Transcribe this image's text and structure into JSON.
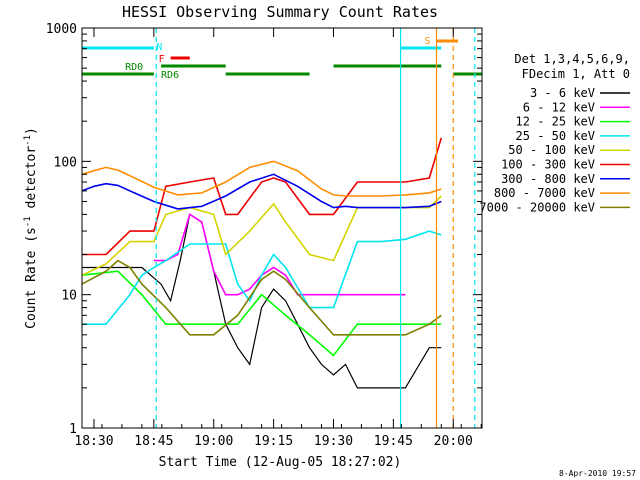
{
  "chart_data": {
    "type": "line",
    "title": "HESSI Observing Summary Count Rates",
    "xlabel": "Start Time (12-Aug-05 18:27:02)",
    "ylabel_prefix": "Count Rate (s",
    "ylabel_mid": " detector",
    "ylabel_suffix": ")",
    "ylabel_exp": "-1",
    "yscale": "log",
    "ylim": [
      1,
      1000
    ],
    "xlim_minutes": [
      18.45,
      20.12
    ],
    "x_ticks": [
      "18:30",
      "18:45",
      "19:00",
      "19:15",
      "19:30",
      "19:45",
      "20:00"
    ],
    "x_tick_hours": [
      18.5,
      18.75,
      19.0,
      19.25,
      19.5,
      19.75,
      20.0
    ],
    "y_ticks": [
      "1",
      "10",
      "100",
      "1000"
    ],
    "y_tick_values": [
      1,
      10,
      100,
      1000
    ],
    "timestamp": "8-Apr-2010 19:57",
    "legend_header": [
      "Det 1,3,4,5,6,9,",
      "FDecim 1, Att 0"
    ],
    "flags": {
      "N": {
        "label": "N",
        "color": "#00e5ee"
      },
      "F": {
        "label": "F",
        "color": "#ee0000"
      },
      "S": {
        "label": "S",
        "color": "#ff8c00"
      },
      "RD0": {
        "label": "RD0",
        "color": "#008800"
      },
      "RD6": {
        "label": "RD6",
        "color": "#008800"
      }
    },
    "series": [
      {
        "name": "3 - 6 keV",
        "color": "#000000",
        "x": [
          18.45,
          18.7,
          18.78,
          18.82,
          18.86,
          18.9,
          18.95,
          19.0,
          19.05,
          19.1,
          19.15,
          19.2,
          19.25,
          19.3,
          19.35,
          19.4,
          19.45,
          19.5,
          19.55,
          19.6,
          19.7,
          19.8,
          19.9,
          19.95
        ],
        "y": [
          16,
          16,
          12,
          9,
          18,
          40,
          35,
          15,
          6,
          4,
          3,
          8,
          11,
          9,
          6,
          4,
          3,
          2.5,
          3,
          2,
          2,
          2,
          4,
          4
        ]
      },
      {
        "name": "6 - 12 keV",
        "color": "#ff00ff",
        "x": [
          18.75,
          18.8,
          18.85,
          18.9,
          18.95,
          19.0,
          19.05,
          19.1,
          19.15,
          19.2,
          19.25,
          19.3,
          19.35,
          19.4,
          19.5,
          19.6,
          19.7,
          19.8
        ],
        "y": [
          18,
          18,
          20,
          40,
          35,
          15,
          10,
          10,
          11,
          14,
          16,
          14,
          10,
          10,
          10,
          10,
          10,
          10
        ]
      },
      {
        "name": "12 - 25 keV",
        "color": "#00ff00",
        "x": [
          18.45,
          18.6,
          18.7,
          18.8,
          18.9,
          19.0,
          19.1,
          19.2,
          19.3,
          19.4,
          19.5,
          19.6,
          19.7,
          19.8,
          19.9,
          19.95
        ],
        "y": [
          14,
          15,
          10,
          6,
          6,
          6,
          6,
          10,
          7,
          5,
          3.5,
          6,
          6,
          6,
          6,
          6
        ]
      },
      {
        "name": "25 - 50 keV",
        "color": "#00e5ee",
        "x": [
          18.45,
          18.55,
          18.65,
          18.7,
          18.75,
          18.8,
          18.9,
          19.0,
          19.05,
          19.1,
          19.15,
          19.2,
          19.25,
          19.3,
          19.4,
          19.5,
          19.6,
          19.7,
          19.8,
          19.9,
          19.95
        ],
        "y": [
          6,
          6,
          10,
          14,
          16,
          18,
          24,
          24,
          24,
          12,
          9,
          14,
          20,
          16,
          8,
          8,
          25,
          25,
          26,
          30,
          28
        ]
      },
      {
        "name": "50 - 100 keV",
        "color": "#d4d400",
        "x": [
          18.45,
          18.55,
          18.65,
          18.75,
          18.8,
          18.9,
          19.0,
          19.05,
          19.15,
          19.25,
          19.3,
          19.4,
          19.5,
          19.6,
          19.7,
          19.8,
          19.9,
          19.95
        ],
        "y": [
          14,
          17,
          25,
          25,
          40,
          45,
          40,
          20,
          30,
          48,
          35,
          20,
          18,
          45,
          45,
          45,
          45,
          55
        ]
      },
      {
        "name": "100 - 300 keV",
        "color": "#ee0000",
        "x": [
          18.45,
          18.55,
          18.65,
          18.75,
          18.8,
          18.9,
          19.0,
          19.05,
          19.1,
          19.2,
          19.25,
          19.3,
          19.4,
          19.5,
          19.6,
          19.7,
          19.8,
          19.9,
          19.95
        ],
        "y": [
          20,
          20,
          30,
          30,
          65,
          70,
          75,
          40,
          40,
          70,
          75,
          70,
          40,
          40,
          70,
          70,
          70,
          75,
          150
        ]
      },
      {
        "name": "300 - 800 keV",
        "color": "#0000ee",
        "x": [
          18.45,
          18.5,
          18.55,
          18.6,
          18.65,
          18.75,
          18.85,
          18.95,
          19.05,
          19.15,
          19.25,
          19.35,
          19.45,
          19.5,
          19.55,
          19.6,
          19.7,
          19.8,
          19.9,
          19.95
        ],
        "y": [
          60,
          65,
          68,
          66,
          60,
          50,
          44,
          46,
          55,
          70,
          80,
          65,
          50,
          45,
          46,
          45,
          45,
          45,
          46,
          50
        ]
      },
      {
        "name": "800 - 7000 keV",
        "color": "#ff8c00",
        "x": [
          18.45,
          18.5,
          18.55,
          18.6,
          18.65,
          18.75,
          18.85,
          18.95,
          19.05,
          19.15,
          19.25,
          19.35,
          19.45,
          19.5,
          19.55,
          19.6,
          19.7,
          19.8,
          19.9,
          19.95
        ],
        "y": [
          80,
          85,
          90,
          86,
          78,
          64,
          56,
          58,
          70,
          90,
          100,
          85,
          62,
          56,
          55,
          55,
          55,
          56,
          58,
          62
        ]
      },
      {
        "name": "7000 - 20000 keV",
        "color": "#808000",
        "x": [
          18.45,
          18.55,
          18.6,
          18.65,
          18.7,
          18.8,
          18.9,
          18.95,
          19.0,
          19.1,
          19.2,
          19.25,
          19.3,
          19.4,
          19.5,
          19.6,
          19.7,
          19.8,
          19.9,
          19.95
        ],
        "y": [
          12,
          15,
          18,
          16,
          12,
          8,
          5,
          5,
          5,
          7,
          13,
          15,
          13,
          8,
          5,
          5,
          5,
          5,
          6,
          7
        ]
      }
    ]
  }
}
